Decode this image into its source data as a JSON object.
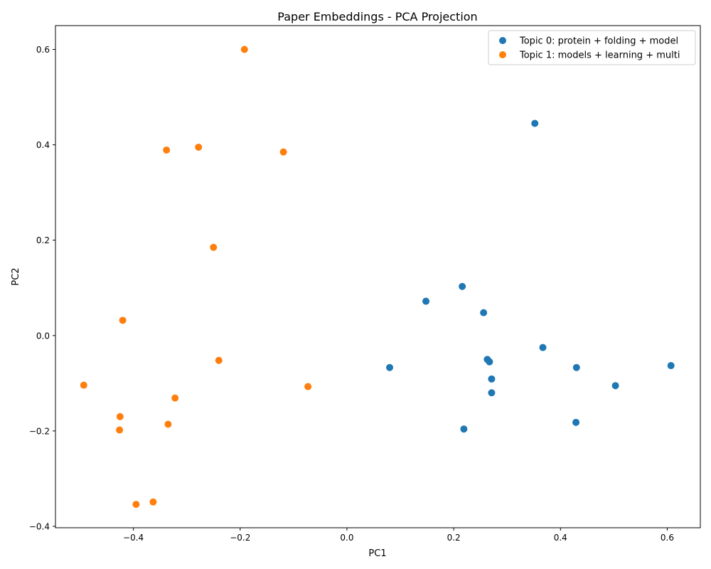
{
  "chart_data": {
    "type": "scatter",
    "title": "Paper Embeddings - PCA Projection",
    "xlabel": "PC1",
    "ylabel": "PC2",
    "xlim": [
      -0.546,
      0.662
    ],
    "ylim": [
      -0.403,
      0.65
    ],
    "xticks": [
      -0.4,
      -0.2,
      0.0,
      0.2,
      0.4,
      0.6
    ],
    "xtick_labels": [
      "−0.4",
      "−0.2",
      "0.0",
      "0.2",
      "0.4",
      "0.6"
    ],
    "yticks": [
      -0.4,
      -0.2,
      0.0,
      0.2,
      0.4,
      0.6
    ],
    "ytick_labels": [
      "−0.4",
      "−0.2",
      "0.0",
      "0.2",
      "0.4",
      "0.6"
    ],
    "grid": false,
    "legend_position": "top-right",
    "series": [
      {
        "name": "Topic 0: protein + folding + model",
        "color": "#1f77b4",
        "points": [
          {
            "x": 0.352,
            "y": 0.445
          },
          {
            "x": 0.216,
            "y": 0.103
          },
          {
            "x": 0.148,
            "y": 0.072
          },
          {
            "x": 0.256,
            "y": 0.048
          },
          {
            "x": 0.367,
            "y": -0.025
          },
          {
            "x": 0.08,
            "y": -0.067
          },
          {
            "x": 0.263,
            "y": -0.05
          },
          {
            "x": 0.267,
            "y": -0.055
          },
          {
            "x": 0.43,
            "y": -0.067
          },
          {
            "x": 0.607,
            "y": -0.063
          },
          {
            "x": 0.271,
            "y": -0.091
          },
          {
            "x": 0.503,
            "y": -0.105
          },
          {
            "x": 0.271,
            "y": -0.12
          },
          {
            "x": 0.429,
            "y": -0.182
          },
          {
            "x": 0.219,
            "y": -0.196
          }
        ]
      },
      {
        "name": "Topic 1: models + learning + multi",
        "color": "#ff7f0e",
        "points": [
          {
            "x": -0.192,
            "y": 0.6
          },
          {
            "x": -0.278,
            "y": 0.395
          },
          {
            "x": -0.338,
            "y": 0.389
          },
          {
            "x": -0.119,
            "y": 0.385
          },
          {
            "x": -0.25,
            "y": 0.185
          },
          {
            "x": -0.42,
            "y": 0.032
          },
          {
            "x": -0.24,
            "y": -0.052
          },
          {
            "x": -0.493,
            "y": -0.104
          },
          {
            "x": -0.073,
            "y": -0.107
          },
          {
            "x": -0.322,
            "y": -0.131
          },
          {
            "x": -0.425,
            "y": -0.17
          },
          {
            "x": -0.335,
            "y": -0.186
          },
          {
            "x": -0.426,
            "y": -0.198
          },
          {
            "x": -0.363,
            "y": -0.349
          },
          {
            "x": -0.395,
            "y": -0.354
          }
        ]
      }
    ]
  }
}
